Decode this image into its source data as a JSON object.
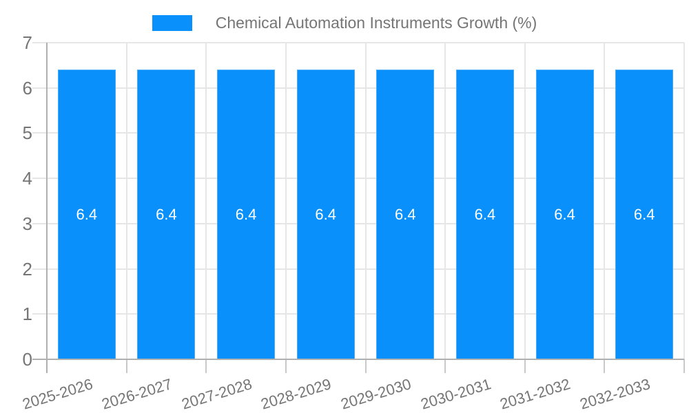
{
  "chart_data": {
    "type": "bar",
    "title": "Chemical Automation Instruments Growth (%)",
    "legend": {
      "position": "top",
      "label": "Chemical Automation Instruments Growth (%)"
    },
    "categories": [
      "2025-2026",
      "2026-2027",
      "2027-2028",
      "2028-2029",
      "2029-2030",
      "2030-2031",
      "2031-2032",
      "2032-2033"
    ],
    "series": [
      {
        "name": "Chemical Automation Instruments Growth (%)",
        "values": [
          6.4,
          6.4,
          6.4,
          6.4,
          6.4,
          6.4,
          6.4,
          6.4
        ]
      }
    ],
    "bar_value_labels": [
      "6.4",
      "6.4",
      "6.4",
      "6.4",
      "6.4",
      "6.4",
      "6.4",
      "6.4"
    ],
    "xlabel": "",
    "ylabel": "",
    "ylim": [
      0,
      7
    ],
    "yticks": [
      0,
      1,
      2,
      3,
      4,
      5,
      6,
      7
    ],
    "ytick_labels": [
      "0",
      "1",
      "2",
      "3",
      "4",
      "5",
      "6",
      "7"
    ],
    "grid": true,
    "x_label_rotation_deg": -17
  },
  "colors": {
    "bar": "#0990fa",
    "axis_line": "#b0b0b0",
    "gridline": "#e6e6e6",
    "tick": "#c9c9c9",
    "text": "#757575",
    "bar_value_text": "#ffffff",
    "background": "#ffffff"
  }
}
